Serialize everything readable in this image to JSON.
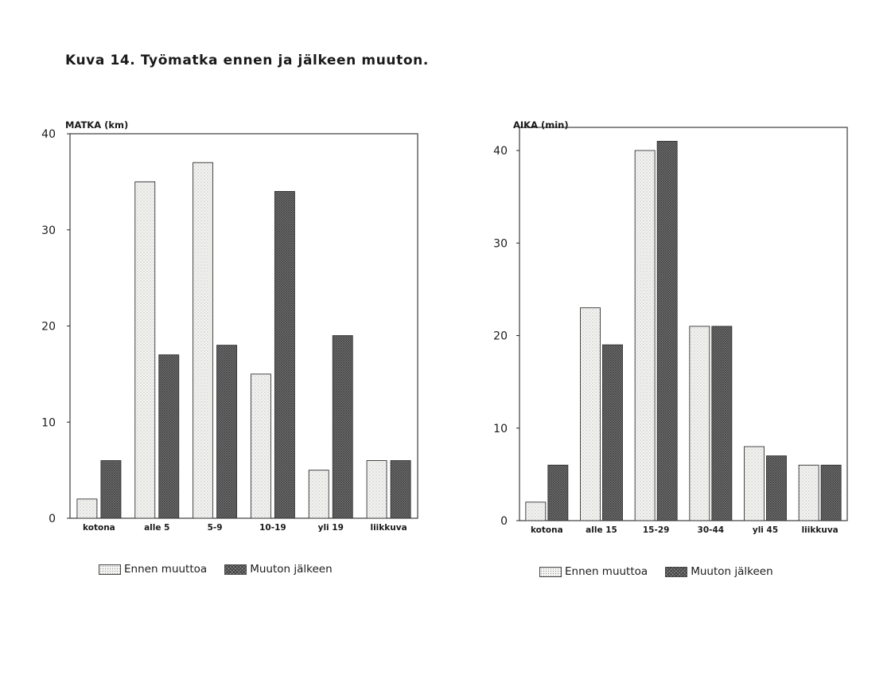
{
  "title": "Kuva 14. Työmatka ennen ja jälkeen muuton.",
  "legend": {
    "before": "Ennen muuttoa",
    "after": "Muuton jälkeen"
  },
  "colors": {
    "before_fill": "#f3f3f1",
    "after_fill": "#8a8a8a",
    "border": "#333333"
  },
  "chart_data": [
    {
      "type": "bar",
      "ylabel": "MATKA (km)",
      "ylim": [
        0,
        40
      ],
      "yticks": [
        0,
        10,
        20,
        30,
        40
      ],
      "categories": [
        "kotona",
        "alle 5",
        "5-9",
        "10-19",
        "yli 19",
        "liikkuva"
      ],
      "series": [
        {
          "name": "Ennen muuttoa",
          "values": [
            2,
            35,
            37,
            15,
            5,
            6
          ]
        },
        {
          "name": "Muuton jälkeen",
          "values": [
            6,
            17,
            18,
            34,
            19,
            6
          ]
        }
      ],
      "grid": false,
      "legend_position": "bottom"
    },
    {
      "type": "bar",
      "ylabel": "AIKA (min)",
      "ylim": [
        0,
        42.5
      ],
      "yticks": [
        0,
        10,
        20,
        30,
        40
      ],
      "categories": [
        "kotona",
        "alle 15",
        "15-29",
        "30-44",
        "yli 45",
        "liikkuva"
      ],
      "series": [
        {
          "name": "Ennen muuttoa",
          "values": [
            2,
            23,
            40,
            21,
            8,
            6
          ]
        },
        {
          "name": "Muuton jälkeen",
          "values": [
            6,
            19,
            41,
            21,
            7,
            6
          ]
        }
      ],
      "grid": false,
      "legend_position": "bottom"
    }
  ]
}
